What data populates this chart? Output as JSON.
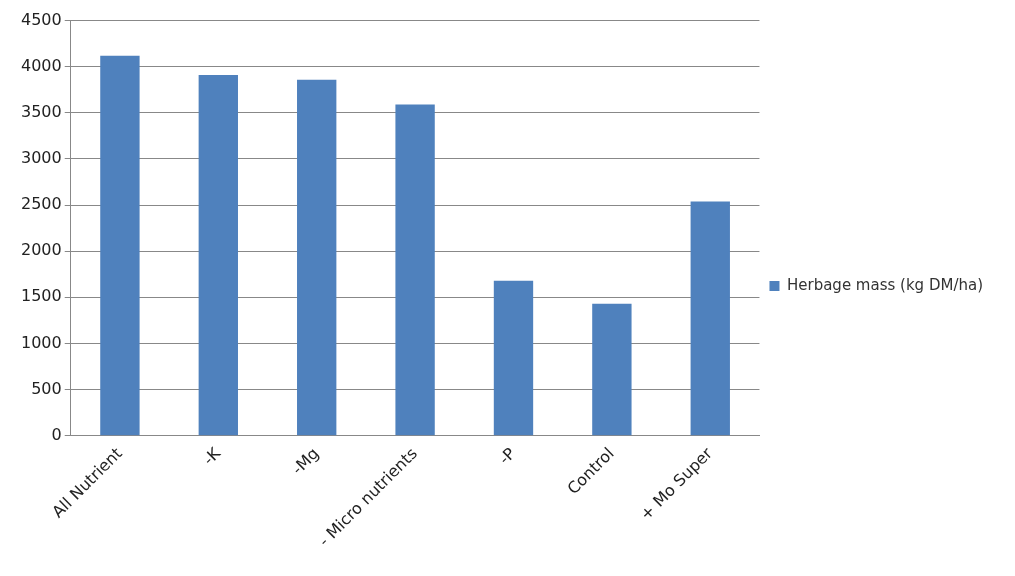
{
  "chart_data": {
    "type": "bar",
    "categories": [
      "All Nutrient",
      "-K",
      "-Mg",
      "- Micro nutrients",
      "-P",
      "Control",
      "+ Mo Super"
    ],
    "series": [
      {
        "name": "Herbage mass (kg DM/ha)",
        "color": "#4f81bd",
        "values": [
          4120,
          3910,
          3860,
          3590,
          1680,
          1430,
          2540
        ]
      }
    ],
    "ylim": [
      0,
      4500
    ],
    "yticks": [
      0,
      500,
      1000,
      1500,
      2000,
      2500,
      3000,
      3500,
      4000,
      4500
    ],
    "grid": "y",
    "legend": "right"
  }
}
